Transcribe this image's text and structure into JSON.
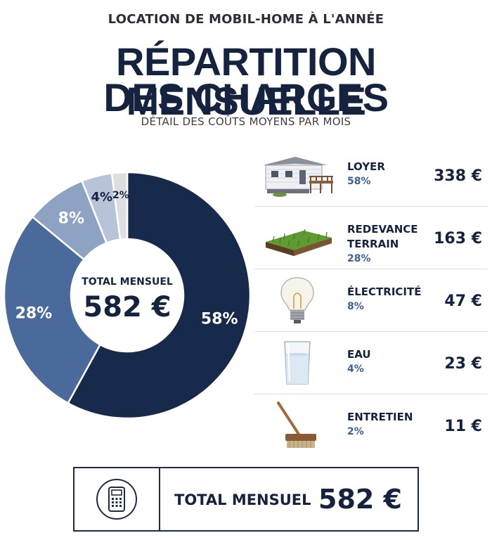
{
  "header": {
    "supertitle": "LOCATION DE MOBIL-HOME À L'ANNÉE",
    "title_line1": "RÉPARTITION MENSUELLE",
    "title_line2": "DES CHARGES",
    "subtitle": "DÉTAIL DES COÛTS MOYENS PAR MOIS"
  },
  "chart_data": {
    "type": "pie",
    "title": "RÉPARTITION MENSUELLE DES CHARGES",
    "center_caption": "TOTAL MENSUEL",
    "center_value": "582 €",
    "categories": [
      "LOYER",
      "REDEVANCE TERRAIN",
      "ÉLECTRICITÉ",
      "EAU",
      "ENTRETIEN"
    ],
    "values": [
      58,
      28,
      8,
      4,
      2
    ],
    "value_labels": [
      "58%",
      "28%",
      "8%",
      "4%",
      "2%"
    ],
    "colors": [
      "#172a4b",
      "#4a6a9b",
      "#8ea3c3",
      "#b7c3d6",
      "#dcdee2"
    ]
  },
  "legend": {
    "items": [
      {
        "name": "LOYER",
        "pct": "58%",
        "amount": "338 €",
        "icon": "mobile-home-icon"
      },
      {
        "name": "REDEVANCE TERRAIN",
        "pct": "28%",
        "amount": "163 €",
        "icon": "grass-plot-icon"
      },
      {
        "name": "ÉLECTRICITÉ",
        "pct": "8%",
        "amount": "47 €",
        "icon": "light-bulb-icon"
      },
      {
        "name": "EAU",
        "pct": "4%",
        "amount": "23 €",
        "icon": "water-glass-icon"
      },
      {
        "name": "ENTRETIEN",
        "pct": "2%",
        "amount": "11 €",
        "icon": "broom-icon"
      }
    ]
  },
  "total": {
    "label": "TOTAL MENSUEL",
    "value": "582 €",
    "icon": "calculator-icon"
  }
}
